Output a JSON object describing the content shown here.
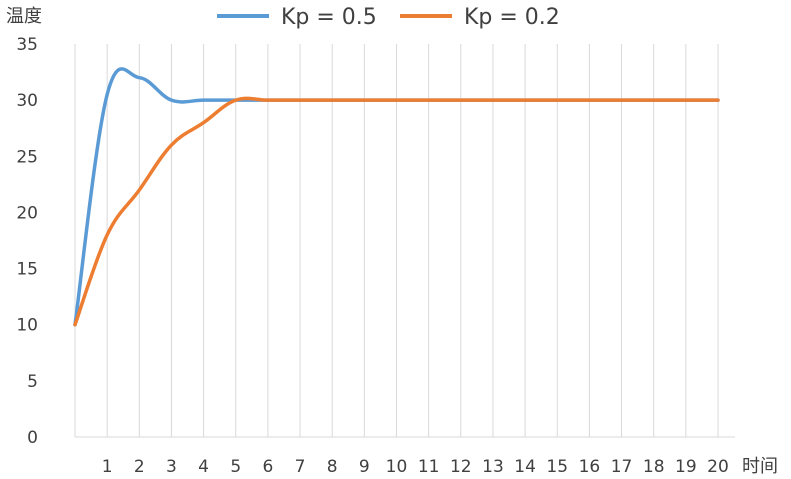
{
  "chart_data": {
    "type": "line",
    "ylabel": "温度",
    "xlabel": "时间",
    "ylim": [
      0,
      35
    ],
    "yticks": [
      0,
      5,
      10,
      15,
      20,
      25,
      30,
      35
    ],
    "x": [
      0,
      1,
      2,
      3,
      4,
      5,
      6,
      7,
      8,
      9,
      10,
      11,
      12,
      13,
      14,
      15,
      16,
      17,
      18,
      19,
      20
    ],
    "x_tick_labels": [
      "1",
      "2",
      "3",
      "4",
      "5",
      "6",
      "7",
      "8",
      "9",
      "10",
      "11",
      "12",
      "13",
      "14",
      "15",
      "16",
      "17",
      "18",
      "19",
      "20"
    ],
    "grid": "vertical",
    "legend_position": "top",
    "series": [
      {
        "name": "Kp = 0.5",
        "color": "#5B9BD5",
        "values": [
          10,
          30.5,
          32,
          30,
          30,
          30,
          30,
          30,
          30,
          30,
          30,
          30,
          30,
          30,
          30,
          30,
          30,
          30,
          30,
          30,
          30
        ]
      },
      {
        "name": "Kp = 0.2",
        "color": "#ED7D31",
        "values": [
          10,
          18,
          22,
          26,
          28,
          30,
          30,
          30,
          30,
          30,
          30,
          30,
          30,
          30,
          30,
          30,
          30,
          30,
          30,
          30,
          30
        ]
      }
    ]
  }
}
